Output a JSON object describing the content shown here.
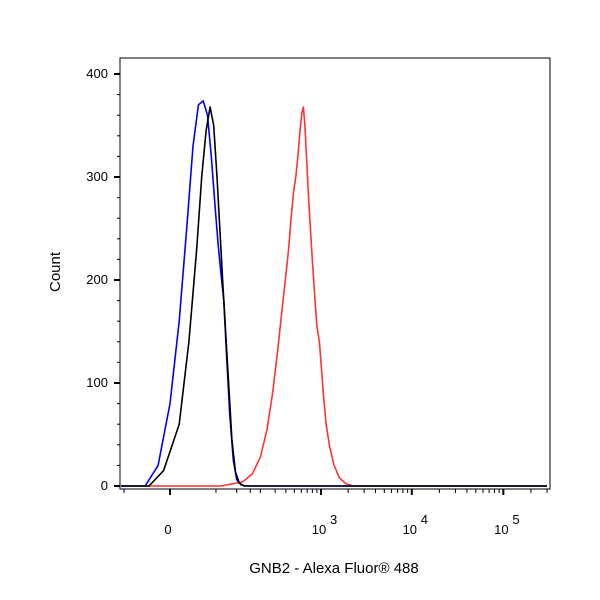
{
  "chart_data": {
    "type": "line",
    "title": "",
    "xlabel": "GNB2 - Alexa Fluor® 488",
    "ylabel": "Count",
    "ylim": [
      0,
      400
    ],
    "yticks": [
      {
        "value": 0,
        "label": "0"
      },
      {
        "value": 100,
        "label": "100"
      },
      {
        "value": 200,
        "label": "200"
      },
      {
        "value": 300,
        "label": "300"
      },
      {
        "value": 400,
        "label": "400"
      }
    ],
    "x_scale": "biexponential",
    "xticks": [
      {
        "value": 0,
        "base": "0",
        "exp": ""
      },
      {
        "value": 1000,
        "base": "10",
        "exp": "3"
      },
      {
        "value": 10000,
        "base": "10",
        "exp": "4"
      },
      {
        "value": 100000,
        "base": "10",
        "exp": "5"
      }
    ],
    "grid": false,
    "legend": "none",
    "series": [
      {
        "color": "#ff3333",
        "points": [
          [
            -250,
            0
          ],
          [
            60,
            0
          ],
          [
            120,
            4
          ],
          [
            160,
            12
          ],
          [
            200,
            28
          ],
          [
            240,
            55
          ],
          [
            280,
            90
          ],
          [
            320,
            130
          ],
          [
            360,
            170
          ],
          [
            400,
            205
          ],
          [
            430,
            230
          ],
          [
            460,
            260
          ],
          [
            490,
            285
          ],
          [
            520,
            300
          ],
          [
            550,
            320
          ],
          [
            580,
            345
          ],
          [
            610,
            362
          ],
          [
            635,
            368
          ],
          [
            660,
            350
          ],
          [
            690,
            318
          ],
          [
            720,
            285
          ],
          [
            760,
            250
          ],
          [
            800,
            220
          ],
          [
            850,
            185
          ],
          [
            900,
            155
          ],
          [
            960,
            140
          ],
          [
            1000,
            120
          ],
          [
            1060,
            90
          ],
          [
            1140,
            60
          ],
          [
            1250,
            38
          ],
          [
            1400,
            20
          ],
          [
            1600,
            8
          ],
          [
            1900,
            2
          ],
          [
            2300,
            0
          ],
          [
            300000,
            0
          ]
        ]
      },
      {
        "color": "#0000ff",
        "points": [
          [
            -250,
            0
          ],
          [
            -20,
            0
          ],
          [
            -8,
            20
          ],
          [
            0,
            80
          ],
          [
            6,
            160
          ],
          [
            12,
            250
          ],
          [
            18,
            330
          ],
          [
            24,
            370
          ],
          [
            30,
            374
          ],
          [
            36,
            360
          ],
          [
            42,
            320
          ],
          [
            48,
            275
          ],
          [
            54,
            235
          ],
          [
            60,
            205
          ],
          [
            66,
            180
          ],
          [
            72,
            130
          ],
          [
            80,
            70
          ],
          [
            90,
            25
          ],
          [
            100,
            6
          ],
          [
            115,
            1
          ],
          [
            135,
            0
          ],
          [
            300000,
            0
          ]
        ]
      },
      {
        "color": "#000000",
        "points": [
          [
            -250,
            0
          ],
          [
            -16,
            0
          ],
          [
            -4,
            15
          ],
          [
            6,
            60
          ],
          [
            14,
            140
          ],
          [
            22,
            230
          ],
          [
            28,
            300
          ],
          [
            34,
            345
          ],
          [
            40,
            368
          ],
          [
            46,
            350
          ],
          [
            52,
            300
          ],
          [
            58,
            245
          ],
          [
            64,
            195
          ],
          [
            70,
            150
          ],
          [
            78,
            95
          ],
          [
            86,
            45
          ],
          [
            96,
            14
          ],
          [
            108,
            3
          ],
          [
            125,
            0
          ],
          [
            300000,
            0
          ]
        ]
      }
    ]
  }
}
